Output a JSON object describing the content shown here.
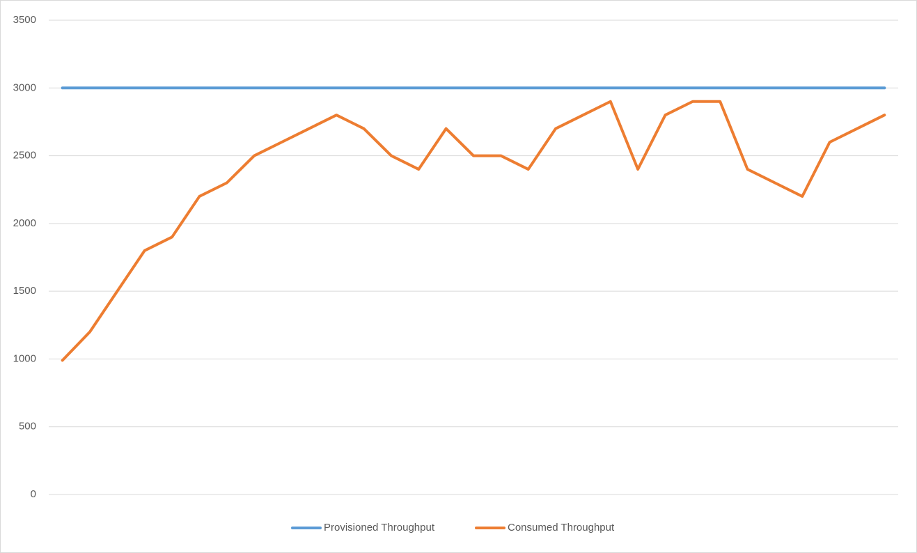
{
  "chart_data": {
    "type": "line",
    "categories": [
      null,
      null,
      null,
      null,
      null,
      null,
      null,
      null,
      null,
      null,
      null,
      null,
      null,
      null,
      null,
      null,
      null,
      null,
      null,
      null,
      null,
      null,
      null,
      null,
      null,
      null,
      null,
      null,
      null,
      null,
      null
    ],
    "series": [
      {
        "name": "Provisioned Throughput",
        "color": "#5b9bd5",
        "values": [
          3000,
          3000,
          3000,
          3000,
          3000,
          3000,
          3000,
          3000,
          3000,
          3000,
          3000,
          3000,
          3000,
          3000,
          3000,
          3000,
          3000,
          3000,
          3000,
          3000,
          3000,
          3000,
          3000,
          3000,
          3000,
          3000,
          3000,
          3000,
          3000,
          3000,
          3000
        ]
      },
      {
        "name": "Consumed Throughput",
        "color": "#ed7d31",
        "values": [
          990,
          1200,
          1500,
          1800,
          1900,
          2200,
          2300,
          2500,
          2600,
          2700,
          2800,
          2700,
          2500,
          2400,
          2700,
          2500,
          2500,
          2400,
          2700,
          2800,
          2900,
          2400,
          2800,
          2900,
          2900,
          2400,
          2300,
          2200,
          2600,
          2700,
          2800
        ]
      }
    ],
    "ylim": [
      0,
      3500
    ],
    "yticks": [
      0,
      500,
      1000,
      1500,
      2000,
      2500,
      3000,
      3500
    ],
    "grid": true,
    "legend": "bottom"
  }
}
